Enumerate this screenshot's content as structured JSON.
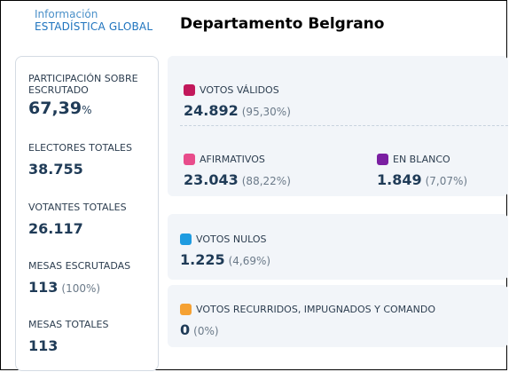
{
  "brand": {
    "top": "Información",
    "bottom": "ESTADÍSTICA GLOBAL"
  },
  "title": "Departamento Belgrano",
  "stats": {
    "participacion": {
      "label": "PARTICIPACIÓN SOBRE ESCRUTADO",
      "value": "67,39",
      "unit": "%"
    },
    "electores": {
      "label": "ELECTORES TOTALES",
      "value": "38.755"
    },
    "votantes": {
      "label": "VOTANTES TOTALES",
      "value": "26.117"
    },
    "mesas_escrutadas": {
      "label": "MESAS ESCRUTADAS",
      "value": "113",
      "pct": "(100%)"
    },
    "mesas_totales": {
      "label": "MESAS TOTALES",
      "value": "113"
    }
  },
  "votes": {
    "validos": {
      "label": "VOTOS VÁLIDOS",
      "value": "24.892",
      "pct": "(95,30%)",
      "color": "#c2185b"
    },
    "afirmativos": {
      "label": "AFIRMATIVOS",
      "value": "23.043",
      "pct": "(88,22%)",
      "color": "#e84c8b"
    },
    "blanco": {
      "label": "EN BLANCO",
      "value": "1.849",
      "pct": "(7,07%)",
      "color": "#7b1fa2"
    },
    "nulos": {
      "label": "VOTOS NULOS",
      "value": "1.225",
      "pct": "(4,69%)",
      "color": "#1e9be0"
    },
    "recurridos": {
      "label": "VOTOS RECURRIDOS, IMPUGNADOS Y COMANDO",
      "value": "0",
      "pct": "(0%)",
      "color": "#f5a133"
    }
  }
}
